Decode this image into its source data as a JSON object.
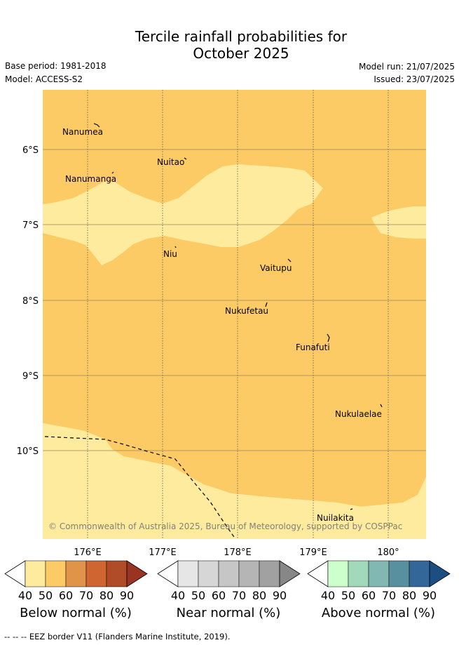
{
  "header": {
    "title_line1": "Tercile rainfall probabilities for",
    "title_line2": "October 2025",
    "base_period": "Base period: 1981-2018",
    "model": "Model: ACCESS-S2",
    "model_run": "Model run: 21/07/2025",
    "issued": "Issued: 23/07/2025"
  },
  "map": {
    "lat_labels": [
      "6°S",
      "7°S",
      "8°S",
      "9°S",
      "10°S"
    ],
    "lon_labels": [
      "176°E",
      "177°E",
      "178°E",
      "179°E",
      "180°"
    ],
    "islands": [
      {
        "name": "Nanumea"
      },
      {
        "name": "Nuitao"
      },
      {
        "name": "Nanumanga"
      },
      {
        "name": "Niu"
      },
      {
        "name": "Vaitupu"
      },
      {
        "name": "Nukufetau"
      },
      {
        "name": "Funafuti"
      },
      {
        "name": "Nukulaelae"
      },
      {
        "name": "Nuilakita"
      }
    ],
    "copyright": "© Commonwealth of Australia 2025, Bureau of Meteorology, supported by COSPPac",
    "colors": {
      "below_50_60": "#fdcb65",
      "below_40_50": "#ffeb9e",
      "background": "#ffffff"
    }
  },
  "colorbars": [
    {
      "label": "Below normal (%)",
      "ticks": [
        "40",
        "50",
        "60",
        "70",
        "80",
        "90"
      ],
      "colors": [
        "#ffffff",
        "#ffeb9e",
        "#fdcb65",
        "#e0944a",
        "#cf6530",
        "#b14c28",
        "#993322"
      ]
    },
    {
      "label": "Near normal (%)",
      "ticks": [
        "40",
        "50",
        "60",
        "70",
        "80",
        "90"
      ],
      "colors": [
        "#ffffff",
        "#e6e6e6",
        "#d6d6d6",
        "#c6c6c6",
        "#b5b5b5",
        "#a1a1a1",
        "#878787"
      ]
    },
    {
      "label": "Above normal (%)",
      "ticks": [
        "40",
        "50",
        "60",
        "70",
        "80",
        "90"
      ],
      "colors": [
        "#ffffff",
        "#ccffcc",
        "#a2d9ba",
        "#81b8b2",
        "#5890a0",
        "#336699",
        "#1d4e82"
      ]
    }
  ],
  "footer": {
    "legend_text": "-- -- -- EEZ border V11 (Flanders Marine Institute, 2019)."
  }
}
